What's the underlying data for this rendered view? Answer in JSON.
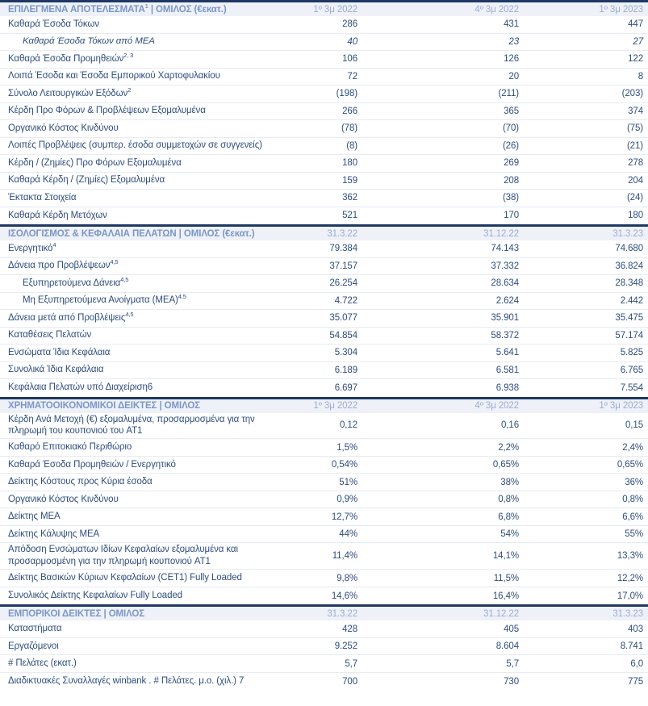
{
  "theme": {
    "border_dark": "#1f3864",
    "section_header_bg": "#eef1f7",
    "section_title_color": "#7b96c8",
    "column_header_color": "#9cadd2",
    "body_text_color": "#2f4d7e",
    "row_divider_color": "#e6ebf4"
  },
  "sections": [
    {
      "id": "selected-results",
      "title_pre": "ΕΠΙΛΕΓΜΕΝΑ ΑΠΟΤΕΛΕΣΜΑΤΑ",
      "title_sup": "1",
      "title_post": " | ΟΜΙΛΟΣ (€εκατ.)",
      "columns": [
        "1º 3μ 2022",
        "4º 3μ 2022",
        "1º 3μ 2023"
      ],
      "rows": [
        {
          "label": "Καθαρά Έσοδα Τόκων",
          "sup": "",
          "indent": false,
          "italic": false,
          "values": [
            "286",
            "431",
            "447"
          ]
        },
        {
          "label": "Καθαρά Έσοδα Τόκων από ΜΕΑ",
          "sup": "",
          "indent": true,
          "italic": true,
          "values": [
            "40",
            "23",
            "27"
          ]
        },
        {
          "label": "Καθαρά Έσοδα Προμηθειών",
          "sup": "2, 3",
          "indent": false,
          "italic": false,
          "values": [
            "106",
            "126",
            "122"
          ]
        },
        {
          "label": "Λοιπά Έσοδα και Έσοδα Εμπορικού Χαρτοφυλακίου",
          "sup": "",
          "indent": false,
          "italic": false,
          "values": [
            "72",
            "20",
            "8"
          ]
        },
        {
          "label": "Σύνολο Λειτουργικών Εξόδων",
          "sup": "2",
          "indent": false,
          "italic": false,
          "values": [
            "(198)",
            "(211)",
            "(203)"
          ]
        },
        {
          "label": "Κέρδη Προ Φόρων & Προβλέψεων Εξομαλυμένα",
          "sup": "",
          "indent": false,
          "italic": false,
          "values": [
            "266",
            "365",
            "374"
          ]
        },
        {
          "label": "Οργανικό Κόστος Κινδύνου",
          "sup": "",
          "indent": false,
          "italic": false,
          "values": [
            "(78)",
            "(70)",
            "(75)"
          ]
        },
        {
          "label": "Λοιπές Προβλέψεις (συμπερ. έσοδα συμμετοχών σε συγγενείς)",
          "sup": "",
          "indent": false,
          "italic": false,
          "values": [
            "(8)",
            "(26)",
            "(21)"
          ]
        },
        {
          "label": "Κέρδη / (Ζημίες) Προ Φόρων Εξομαλυμένα",
          "sup": "",
          "indent": false,
          "italic": false,
          "values": [
            "180",
            "269",
            "278"
          ]
        },
        {
          "label": "Καθαρά Κέρδη / (Ζημίες) Εξομαλυμένα",
          "sup": "",
          "indent": false,
          "italic": false,
          "values": [
            "159",
            "208",
            "204"
          ]
        },
        {
          "label": "Έκτακτα Στοιχεία",
          "sup": "",
          "indent": false,
          "italic": false,
          "values": [
            "362",
            "(38)",
            "(24)"
          ]
        },
        {
          "label": "Καθαρά Κέρδη Μετόχων",
          "sup": "",
          "indent": false,
          "italic": false,
          "values": [
            "521",
            "170",
            "180"
          ]
        }
      ]
    },
    {
      "id": "balance-sheet-customer-funds",
      "title_pre": "ΙΣΟΛΟΓΙΣΜΟΣ & ΚΕΦΑΛΑΙΑ ΠΕΛΑΤΩΝ | ΟΜΙΛΟΣ (€εκατ.)",
      "title_sup": "",
      "title_post": "",
      "columns": [
        "31.3.22",
        "31.12.22",
        "31.3.23"
      ],
      "rows": [
        {
          "label": "Ενεργητικό",
          "sup": "4",
          "indent": false,
          "italic": false,
          "values": [
            "79.384",
            "74.143",
            "74.680"
          ]
        },
        {
          "label": "Δάνεια προ Προβλέψεων",
          "sup": "4,5",
          "indent": false,
          "italic": false,
          "values": [
            "37.157",
            "37.332",
            "36.824"
          ]
        },
        {
          "label": "Εξυπηρετούμενα Δάνεια",
          "sup": "4,5",
          "indent": true,
          "italic": false,
          "values": [
            "26.254",
            "28.634",
            "28.348"
          ]
        },
        {
          "label": "Μη Εξυπηρετούμενα Ανοίγματα (ΜΕΑ)",
          "sup": "4,5",
          "indent": true,
          "italic": false,
          "values": [
            "4.722",
            "2.624",
            "2.442"
          ]
        },
        {
          "label": "Δάνεια μετά από Προβλέψεις",
          "sup": "4,5",
          "indent": false,
          "italic": false,
          "values": [
            "35.077",
            "35.901",
            "35.475"
          ]
        },
        {
          "label": "Καταθέσεις Πελατών",
          "sup": "",
          "indent": false,
          "italic": false,
          "values": [
            "54.854",
            "58.372",
            "57.174"
          ]
        },
        {
          "label": "Ενσώματα Ίδια Κεφάλαια",
          "sup": "",
          "indent": false,
          "italic": false,
          "values": [
            "5.304",
            "5.641",
            "5.825"
          ]
        },
        {
          "label": "Συνολικά Ίδια Κεφάλαια",
          "sup": "",
          "indent": false,
          "italic": false,
          "values": [
            "6.189",
            "6.581",
            "6.765"
          ]
        },
        {
          "label": "Κεφάλαια Πελατών υπό Διαχείριση6",
          "sup": "",
          "indent": false,
          "italic": false,
          "values": [
            "6.697",
            "6.938",
            "7.554"
          ]
        }
      ]
    },
    {
      "id": "financial-ratios",
      "title_pre": "ΧΡΗΜΑΤΟΟΙΚΟΝΟΜΙΚΟΙ ΔΕΙΚΤΕΣ | ΟΜΙΛΟΣ",
      "title_sup": "",
      "title_post": "",
      "columns": [
        "1º 3μ 2022",
        "4º 3μ 2022",
        "1º 3μ 2023"
      ],
      "rows": [
        {
          "label": "Κέρδη Ανά Μετοχή (€) εξομαλυμένα, προσαρμοσμένα για την πληρωμή του κουπονιού του AT1",
          "sup": "",
          "indent": false,
          "italic": false,
          "values": [
            "0,12",
            "0,16",
            "0,15"
          ]
        },
        {
          "label": "Καθαρό Επιτοκιακό Περιθώριο",
          "sup": "",
          "indent": false,
          "italic": false,
          "values": [
            "1,5%",
            "2,2%",
            "2,4%"
          ]
        },
        {
          "label": "Καθαρά Έσοδα Προμηθειών / Ενεργητικό",
          "sup": "",
          "indent": false,
          "italic": false,
          "values": [
            "0,54%",
            "0,65%",
            "0,65%"
          ]
        },
        {
          "label": "Δείκτης Κόστους προς Κύρια έσοδα",
          "sup": "",
          "indent": false,
          "italic": false,
          "values": [
            "51%",
            "38%",
            "36%"
          ]
        },
        {
          "label": "Οργανικό Κόστος Κινδύνου",
          "sup": "",
          "indent": false,
          "italic": false,
          "values": [
            "0,9%",
            "0,8%",
            "0,8%"
          ]
        },
        {
          "label": "Δείκτης ΜΕΑ",
          "sup": "",
          "indent": false,
          "italic": false,
          "values": [
            "12,7%",
            "6,8%",
            "6,6%"
          ]
        },
        {
          "label": "Δείκτης Κάλυψης ΜΕΑ",
          "sup": "",
          "indent": false,
          "italic": false,
          "values": [
            "44%",
            "54%",
            "55%"
          ]
        },
        {
          "label": "Απόδοση Ενσώματων Ιδίων Κεφαλαίων εξομαλυμένα και προσαρμοσμένη για την πληρωμή κουπονιού AT1",
          "sup": "",
          "indent": false,
          "italic": false,
          "values": [
            "11,4%",
            "14,1%",
            "13,3%"
          ]
        },
        {
          "label": "Δείκτης Βασικών Κύριων Κεφαλαίων (CET1) Fully Loaded",
          "sup": "",
          "indent": false,
          "italic": false,
          "values": [
            "9,8%",
            "11,5%",
            "12,2%"
          ]
        },
        {
          "label": "Συνολικός Δείκτης Κεφαλαίων Fully Loaded",
          "sup": "",
          "indent": false,
          "italic": false,
          "values": [
            "14,6%",
            "16,4%",
            "17,0%"
          ]
        }
      ]
    },
    {
      "id": "commercial-indicators",
      "title_pre": "ΕΜΠΟΡΙΚΟΙ ΔΕΙΚΤΕΣ | ΟΜΙΛΟΣ",
      "title_sup": "",
      "title_post": "",
      "columns": [
        "31.3.22",
        "31.12.22",
        "31.3.23"
      ],
      "rows": [
        {
          "label": "Καταστήματα",
          "sup": "",
          "indent": false,
          "italic": false,
          "values": [
            "428",
            "405",
            "403"
          ]
        },
        {
          "label": "Εργαζόμενοι",
          "sup": "",
          "indent": false,
          "italic": false,
          "values": [
            "9.252",
            "8.604",
            "8.741"
          ]
        },
        {
          "label": "# Πελάτες (εκατ.)",
          "sup": "",
          "indent": false,
          "italic": false,
          "values": [
            "5,7",
            "5,7",
            "6,0"
          ]
        },
        {
          "label": "Διαδικτυακές Συναλλαγές winbank . # Πελάτες. μ.ο. (χιλ.) 7",
          "sup": "",
          "indent": false,
          "italic": false,
          "values": [
            "700",
            "730",
            "775"
          ]
        }
      ]
    }
  ]
}
